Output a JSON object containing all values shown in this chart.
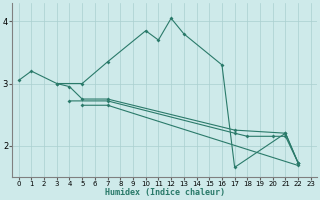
{
  "xlabel": "Humidex (Indice chaleur)",
  "bg_color": "#ceeaea",
  "line_color": "#2a7a6a",
  "grid_color": "#aacfcf",
  "xlim": [
    -0.5,
    23.5
  ],
  "ylim": [
    1.5,
    4.3
  ],
  "yticks": [
    2,
    3,
    4
  ],
  "xticks": [
    0,
    1,
    2,
    3,
    4,
    5,
    6,
    7,
    8,
    9,
    10,
    11,
    12,
    13,
    14,
    15,
    16,
    17,
    18,
    19,
    20,
    21,
    22,
    23
  ],
  "series": [
    {
      "x": [
        0,
        1,
        3,
        5,
        7,
        10,
        11,
        12,
        13,
        16,
        17,
        21,
        22
      ],
      "y": [
        3.05,
        3.2,
        3.0,
        3.0,
        3.35,
        3.85,
        3.7,
        4.05,
        3.8,
        3.3,
        1.65,
        2.2,
        1.72
      ]
    },
    {
      "x": [
        3,
        4,
        5,
        7,
        17,
        21,
        22
      ],
      "y": [
        3.0,
        2.95,
        2.75,
        2.75,
        2.25,
        2.2,
        1.72
      ]
    },
    {
      "x": [
        4,
        7,
        17,
        18,
        20,
        21,
        22
      ],
      "y": [
        2.72,
        2.72,
        2.2,
        2.15,
        2.15,
        2.15,
        1.72
      ]
    },
    {
      "x": [
        5,
        7,
        22
      ],
      "y": [
        2.65,
        2.65,
        1.68
      ]
    }
  ]
}
